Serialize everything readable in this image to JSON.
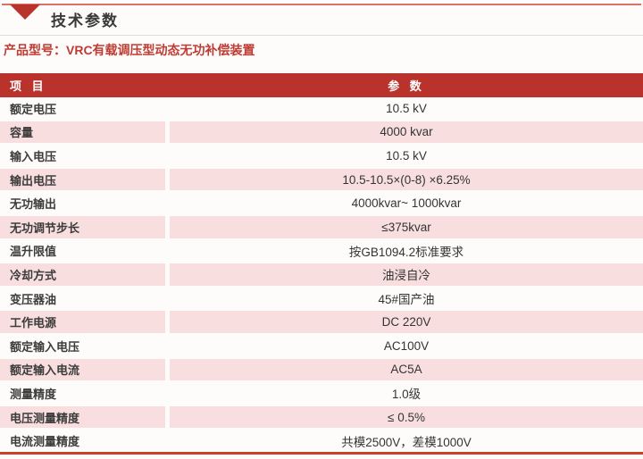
{
  "page": {
    "section_title": "技术参数",
    "product_label": "产品型号：VRC有载调压型动态无功补偿装置"
  },
  "colors": {
    "header_red": "#B9322C",
    "row_pink": "#F8DEDF",
    "top_accent_line": "#DC7166",
    "bottom_accent_line": "#CD4128",
    "product_text_red": "#BE3C34",
    "title_text": "#3A3A3A"
  },
  "icons": {
    "section_marker": "triangle-down-icon"
  },
  "table": {
    "headers": {
      "item": "项 目",
      "param": "参 数"
    },
    "rows": [
      {
        "label": "额定电压",
        "value": "10.5 kV"
      },
      {
        "label": "容量",
        "value": "4000 kvar"
      },
      {
        "label": "输入电压",
        "value": "10.5 kV"
      },
      {
        "label": "输出电压",
        "value": "10.5-10.5×(0-8) ×6.25%"
      },
      {
        "label": "无功输出",
        "value": "4000kvar~ 1000kvar"
      },
      {
        "label": "无功调节步长",
        "value": "≤375kvar"
      },
      {
        "label": "温升限值",
        "value": "按GB1094.2标准要求"
      },
      {
        "label": "冷却方式",
        "value": "油浸自冷"
      },
      {
        "label": "变压器油",
        "value": "45#国产油"
      },
      {
        "label": "工作电源",
        "value": "DC 220V"
      },
      {
        "label": "额定输入电压",
        "value": "AC100V"
      },
      {
        "label": "额定输入电流",
        "value": "AC5A"
      },
      {
        "label": "测量精度",
        "value": "1.0级"
      },
      {
        "label": "电压测量精度",
        "value": "≤ 0.5%"
      },
      {
        "label": "电流测量精度",
        "value": "共模2500V，差模1000V"
      }
    ]
  }
}
